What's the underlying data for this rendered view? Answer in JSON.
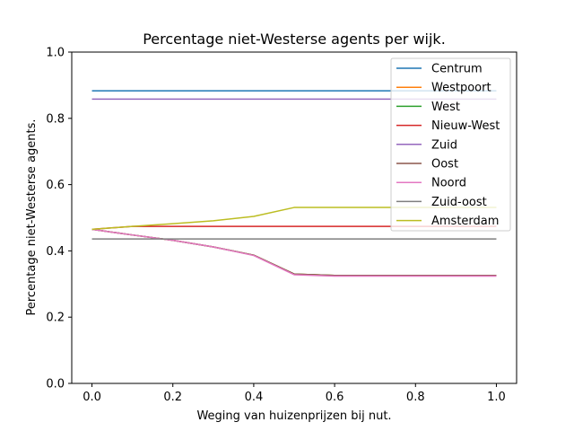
{
  "chart_data": {
    "type": "line",
    "title": "Percentage niet-Westerse agents per wijk.",
    "xlabel": "Weging van huizenprijzen bij nut.",
    "ylabel": "Percentage niet-Westerse agents.",
    "xlim": [
      -0.05,
      1.05
    ],
    "ylim": [
      0.0,
      1.0
    ],
    "xticks": [
      "0.0",
      "0.2",
      "0.4",
      "0.6",
      "0.8",
      "1.0"
    ],
    "yticks": [
      "0.0",
      "0.2",
      "0.4",
      "0.6",
      "0.8",
      "1.0"
    ],
    "grid": false,
    "legend_position": "top-right",
    "x": [
      0.0,
      0.1,
      0.2,
      0.3,
      0.4,
      0.5,
      0.6,
      0.7,
      0.8,
      0.9,
      1.0
    ],
    "series": [
      {
        "name": "Centrum",
        "color": "#1f77b4",
        "values": [
          0.883,
          0.883,
          0.883,
          0.883,
          0.883,
          0.883,
          0.883,
          0.883,
          0.883,
          0.883,
          0.883
        ]
      },
      {
        "name": "Westpoort",
        "color": "#ff7f0e",
        "values": [
          0.465,
          0.448,
          0.432,
          0.412,
          0.387,
          0.33,
          0.326,
          0.326,
          0.326,
          0.326,
          0.326
        ]
      },
      {
        "name": "West",
        "color": "#2ca02c",
        "values": [
          0.465,
          0.448,
          0.432,
          0.412,
          0.387,
          0.33,
          0.326,
          0.326,
          0.326,
          0.326,
          0.326
        ]
      },
      {
        "name": "Nieuw-West",
        "color": "#d62728",
        "values": [
          0.465,
          0.474,
          0.474,
          0.474,
          0.474,
          0.474,
          0.474,
          0.474,
          0.474,
          0.474,
          0.474
        ]
      },
      {
        "name": "Zuid",
        "color": "#9467bd",
        "values": [
          0.858,
          0.858,
          0.858,
          0.858,
          0.858,
          0.858,
          0.858,
          0.858,
          0.858,
          0.858,
          0.858
        ]
      },
      {
        "name": "Oost",
        "color": "#8c564b",
        "values": [
          0.465,
          0.448,
          0.432,
          0.412,
          0.387,
          0.33,
          0.326,
          0.326,
          0.326,
          0.326,
          0.326
        ]
      },
      {
        "name": "Noord",
        "color": "#e377c2",
        "values": [
          0.465,
          0.448,
          0.432,
          0.412,
          0.386,
          0.328,
          0.324,
          0.324,
          0.324,
          0.324,
          0.324
        ]
      },
      {
        "name": "Zuid-oost",
        "color": "#7f7f7f",
        "values": [
          0.436,
          0.436,
          0.436,
          0.436,
          0.436,
          0.436,
          0.436,
          0.436,
          0.436,
          0.436,
          0.436
        ]
      },
      {
        "name": "Amsterdam",
        "color": "#bcbd22",
        "values": [
          0.465,
          0.474,
          0.482,
          0.491,
          0.504,
          0.531,
          0.531,
          0.531,
          0.531,
          0.531,
          0.531
        ]
      }
    ]
  }
}
